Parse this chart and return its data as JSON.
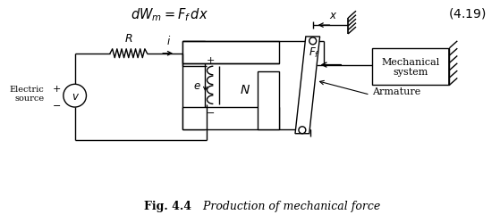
{
  "bg_color": "#ffffff",
  "line_color": "#000000",
  "fig_label": "Fig. 4.4",
  "fig_caption": "Production of mechanical force",
  "eq_text": "dW_m = F_f\\,dx",
  "eq_number": "(4.19)"
}
